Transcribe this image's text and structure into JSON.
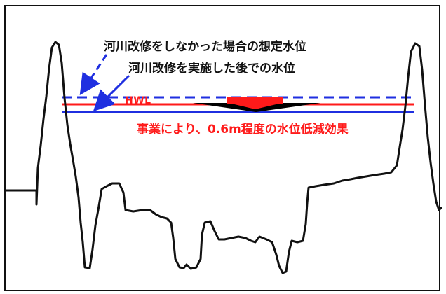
{
  "diagram": {
    "labels": {
      "without_improvement": "河川改修をしなかった場合の想定水位",
      "with_improvement": "河川改修を実施した後での水位",
      "hwl": "HWL",
      "effect": "事業により、0.6m程度の水位低減効果"
    },
    "colors": {
      "ground": "#111111",
      "water_without": "#1f2fe0",
      "water_with": "#ff1a1a",
      "current_level": "#1f2fe0",
      "arrow_dashed": "#1f2fe0",
      "arrow_solid": "#1f2fe0",
      "reduction_marker": "#ff1a1a"
    }
  }
}
